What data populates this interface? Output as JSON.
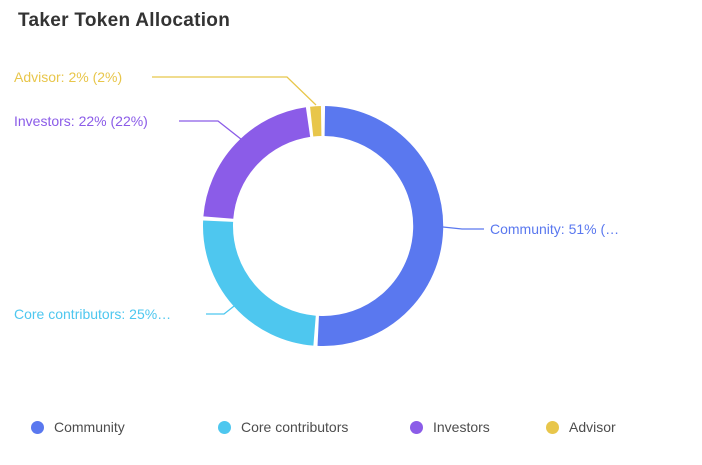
{
  "title": "Taker Token Allocation",
  "chart_data": {
    "type": "pie",
    "subtype": "donut",
    "title": "Taker Token Allocation",
    "categories": [
      "Community",
      "Core contributors",
      "Investors",
      "Advisor"
    ],
    "values": [
      51,
      25,
      22,
      2
    ],
    "unit": "%",
    "colors": [
      "#5A78EF",
      "#4EC7EF",
      "#8B5CE8",
      "#E8C64B"
    ],
    "start_angle": "top",
    "direction": "clockwise",
    "inner_radius_ratio": 0.75,
    "legend_position": "bottom",
    "callout_labels": [
      "Community: 51% (…",
      "Core contributors: 25%…",
      "Investors: 22% (22%)",
      "Advisor: 2% (2%)"
    ]
  },
  "callouts": {
    "community": "Community: 51% (…",
    "core_contributors": "Core contributors: 25%…",
    "investors": "Investors: 22% (22%)",
    "advisor": "Advisor: 2% (2%)"
  },
  "legend": {
    "items": [
      {
        "label": "Community",
        "color": "#5A78EF"
      },
      {
        "label": "Core contributors",
        "color": "#4EC7EF"
      },
      {
        "label": "Investors",
        "color": "#8B5CE8"
      },
      {
        "label": "Advisor",
        "color": "#E8C64B"
      }
    ]
  }
}
